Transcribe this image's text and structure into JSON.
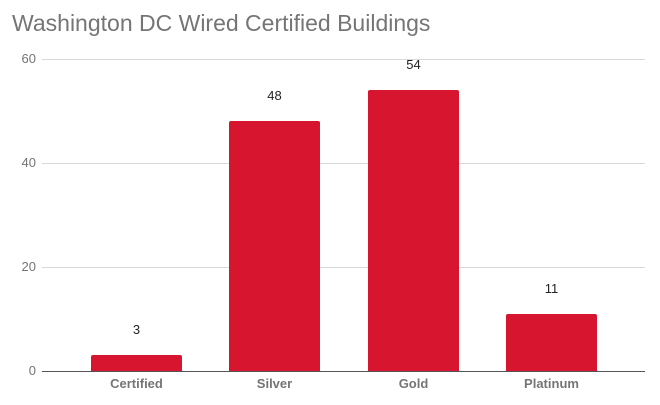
{
  "chart_data": {
    "type": "bar",
    "title": "Washington DC Wired Certified Buildings",
    "xlabel": "",
    "ylabel": "",
    "categories": [
      "Certified",
      "Silver",
      "Gold",
      "Platinum"
    ],
    "values": [
      3,
      48,
      54,
      11
    ],
    "data_labels": [
      "3",
      "48",
      "54",
      "11"
    ],
    "ylim": [
      0,
      60
    ],
    "yticks": [
      0,
      20,
      40,
      60
    ],
    "ytick_labels": [
      "0",
      "20",
      "40",
      "60"
    ],
    "grid": true,
    "legend": "none",
    "bar_color": "#d7152f"
  },
  "colors": {
    "bar": "#d7152f",
    "title": "#757575",
    "grid": "#d9d9d9",
    "axis": "#555555"
  }
}
